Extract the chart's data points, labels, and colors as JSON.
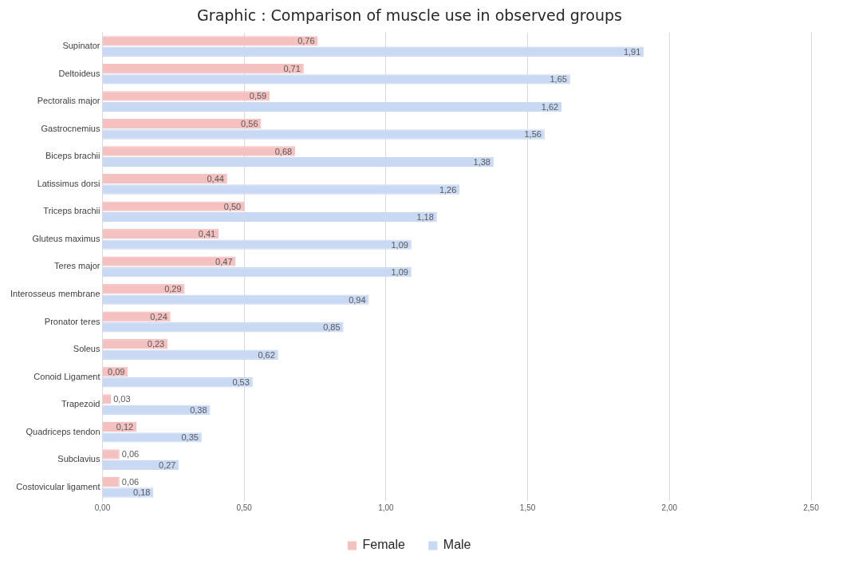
{
  "chart_data": {
    "type": "bar",
    "orientation": "horizontal",
    "title": "Graphic : Comparison of muscle use in observed groups",
    "categories": [
      "Supinator",
      "Deltoideus",
      "Pectoralis major",
      "Gastrocnemius",
      "Biceps brachii",
      "Latissimus dorsi",
      "Triceps brachii",
      "Gluteus maximus",
      "Teres major",
      "Interosseus membrane",
      "Pronator teres",
      "Soleus",
      "Conoid Ligament",
      "Trapezoid",
      "Quadriceps tendon",
      "Subclavius",
      "Costovicular ligament"
    ],
    "series": [
      {
        "name": "Female",
        "color": "#f5c0c0",
        "values": [
          0.76,
          0.71,
          0.59,
          0.56,
          0.68,
          0.44,
          0.5,
          0.41,
          0.47,
          0.29,
          0.24,
          0.23,
          0.09,
          0.03,
          0.12,
          0.06,
          0.06
        ],
        "value_labels": [
          "0,76",
          "0,71",
          "0,59",
          "0,56",
          "0,68",
          "0,44",
          "0,50",
          "0,41",
          "0,47",
          "0,29",
          "0,24",
          "0,23",
          "0,09",
          "0,03",
          "0,12",
          "0,06",
          "0,06"
        ]
      },
      {
        "name": "Male",
        "color": "#c9d9f3",
        "values": [
          1.91,
          1.65,
          1.62,
          1.56,
          1.38,
          1.26,
          1.18,
          1.09,
          1.09,
          0.94,
          0.85,
          0.62,
          0.53,
          0.38,
          0.35,
          0.27,
          0.18
        ],
        "value_labels": [
          "1,91",
          "1,65",
          "1,62",
          "1,56",
          "1,38",
          "1,26",
          "1,18",
          "1,09",
          "1,09",
          "0,94",
          "0,85",
          "0,62",
          "0,53",
          "0,38",
          "0,35",
          "0,27",
          "0,18"
        ]
      }
    ],
    "xlim": [
      0,
      2.5
    ],
    "xticks": [
      {
        "value": 0,
        "label": "0,00"
      },
      {
        "value": 0.5,
        "label": "0,50"
      },
      {
        "value": 1,
        "label": "1,00"
      },
      {
        "value": 1.5,
        "label": "1,50"
      },
      {
        "value": 2,
        "label": "2,00"
      },
      {
        "value": 2.5,
        "label": "2,50"
      }
    ],
    "grid": "x",
    "legend": "bottom"
  }
}
